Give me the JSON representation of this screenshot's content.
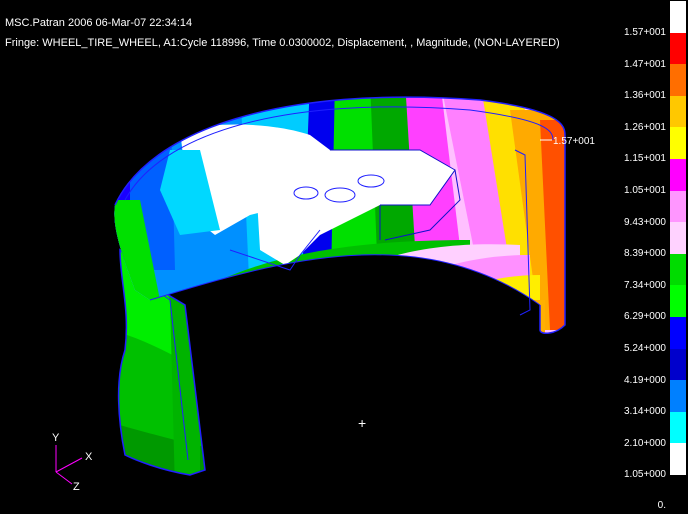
{
  "header": {
    "title_line": "MSC.Patran 2006 06-Mar-07 22:34:14",
    "fringe_line": "Fringe: WHEEL_TIRE_WHEEL, A1:Cycle 118996, Time 0.0300002, Displacement, , Magnitude, (NON-LAYERED)"
  },
  "model": {
    "max_label": "1.57+001",
    "cursor": "+"
  },
  "axes": {
    "x": "X",
    "y": "Y",
    "z": "Z"
  },
  "legend": {
    "labels": [
      "1.57+001",
      "1.47+001",
      "1.36+001",
      "1.26+001",
      "1.15+001",
      "1.05+001",
      "9.43+000",
      "8.39+000",
      "7.34+000",
      "6.29+000",
      "5.24+000",
      "4.19+000",
      "3.14+000",
      "2.10+000",
      "1.05+000",
      "0."
    ],
    "colors": [
      "#ffffff",
      "#ff0000",
      "#ff6e00",
      "#ffc800",
      "#ffff00",
      "#ff00ff",
      "#ff96ff",
      "#ffd2ff",
      "#00dc00",
      "#00ff00",
      "#0000ff",
      "#0000cc",
      "#0080ff",
      "#00ffff",
      "#ffffff"
    ]
  }
}
